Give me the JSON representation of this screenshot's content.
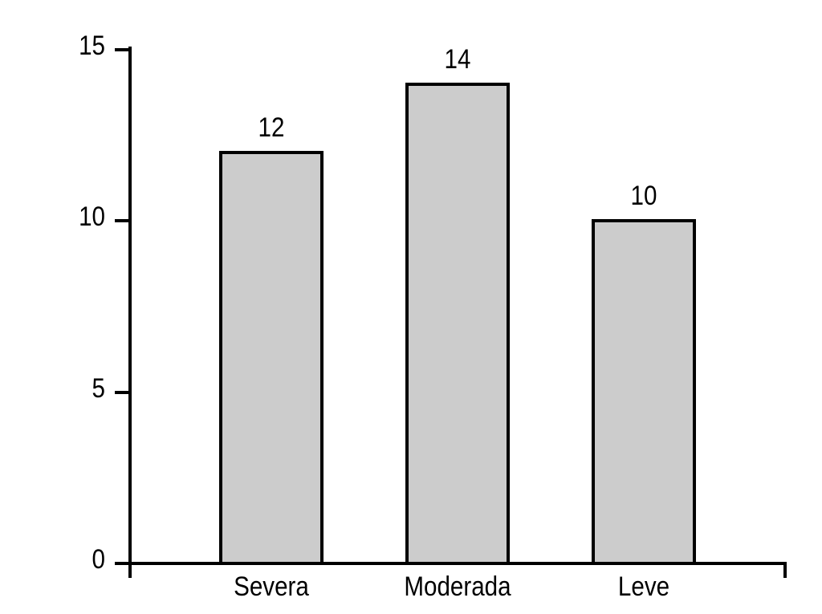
{
  "figure": {
    "background_color": "#ffffff"
  },
  "chart_data": {
    "type": "bar",
    "title": "",
    "xlabel": "",
    "ylabel": "",
    "categories": [
      "Severa",
      "Moderada",
      "Leve"
    ],
    "values": [
      12,
      14,
      10
    ],
    "bar_value_labels": [
      "12",
      "14",
      "10"
    ],
    "ylim": [
      0,
      15
    ],
    "yticks": [
      0,
      5,
      10,
      15
    ],
    "grid": false,
    "legend_position": "none",
    "colors": {
      "bar_fill": "#cccccc",
      "bar_border": "#000000",
      "axis": "#000000",
      "text": "#000000"
    }
  }
}
